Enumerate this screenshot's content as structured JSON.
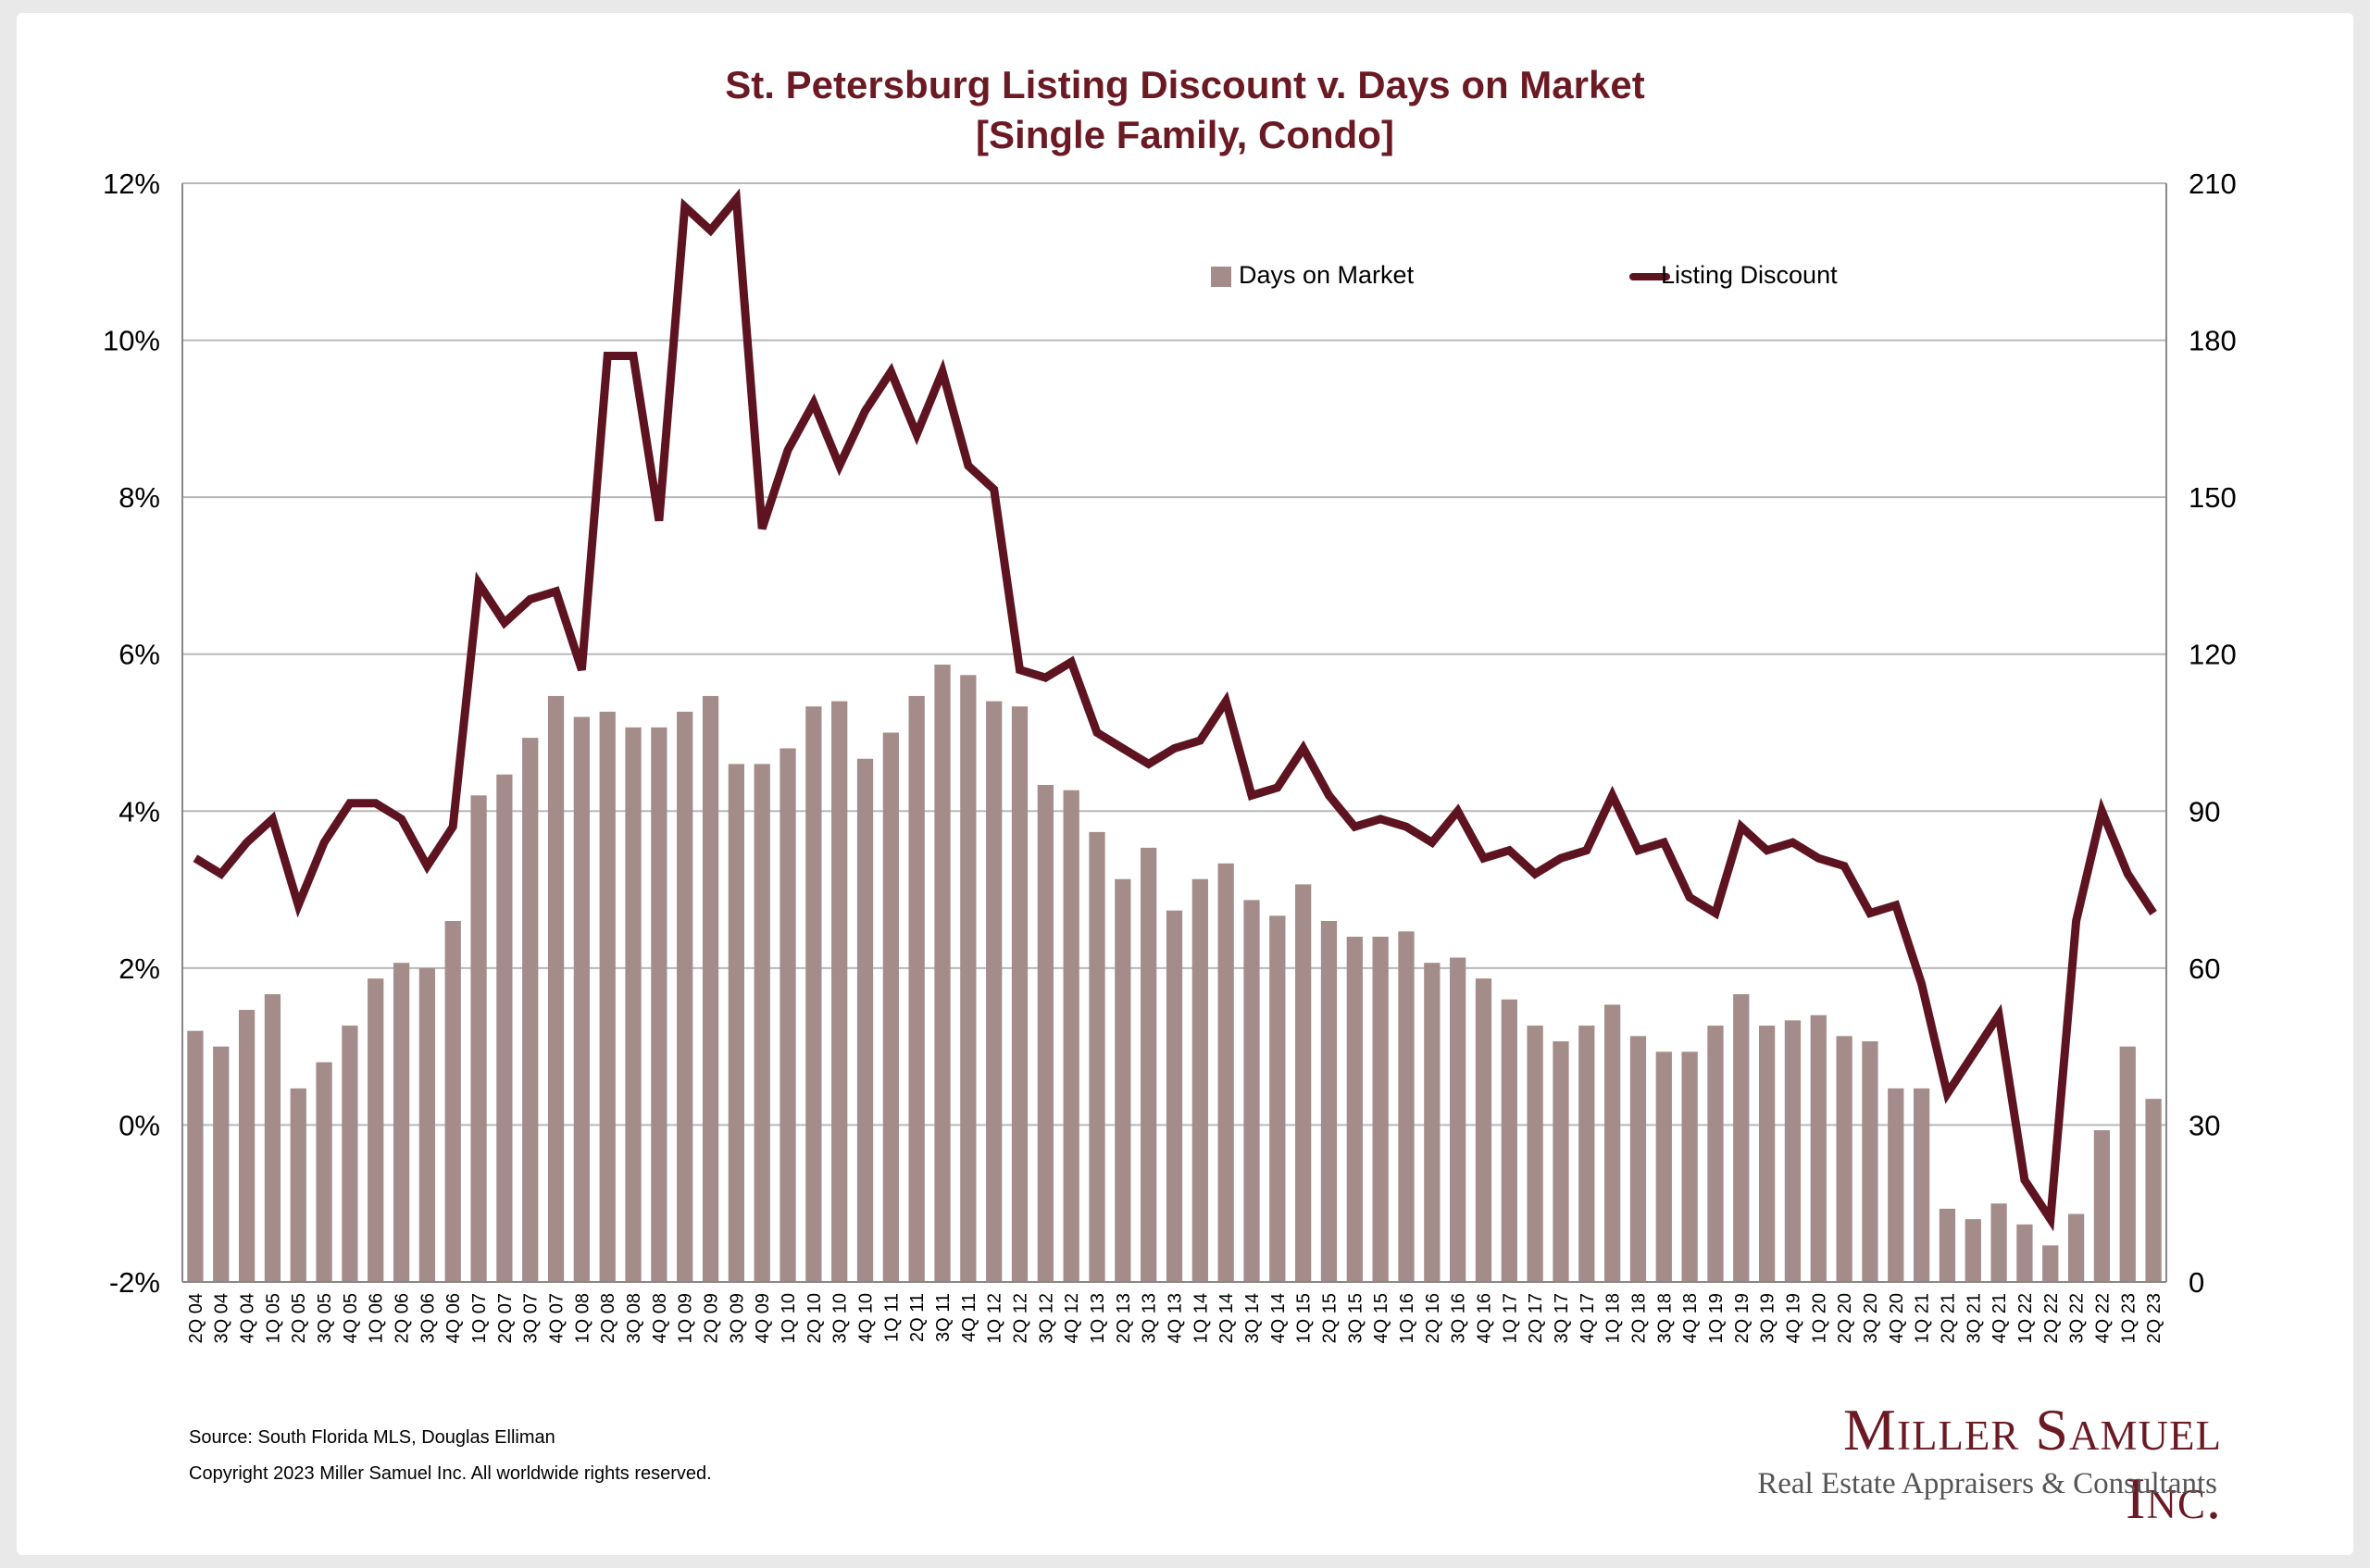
{
  "colors": {
    "bar": "#a38c89",
    "line": "#5e1420",
    "title": "#6b1a24",
    "grid": "#b8b8b8"
  },
  "chart_data": {
    "type": "bar+line",
    "title": "St. Petersburg Listing Discount v. Days on Market",
    "subtitle": "[Single Family, Condo]",
    "categories": [
      "2Q 04",
      "3Q 04",
      "4Q 04",
      "1Q 05",
      "2Q 05",
      "3Q 05",
      "4Q 05",
      "1Q 06",
      "2Q 06",
      "3Q 06",
      "4Q 06",
      "1Q 07",
      "2Q 07",
      "3Q 07",
      "4Q 07",
      "1Q 08",
      "2Q 08",
      "3Q 08",
      "4Q 08",
      "1Q 09",
      "2Q 09",
      "3Q 09",
      "4Q 09",
      "1Q 10",
      "2Q 10",
      "3Q 10",
      "4Q 10",
      "1Q 11",
      "2Q 11",
      "3Q 11",
      "4Q 11",
      "1Q 12",
      "2Q 12",
      "3Q 12",
      "4Q 12",
      "1Q 13",
      "2Q 13",
      "3Q 13",
      "4Q 13",
      "1Q 14",
      "2Q 14",
      "3Q 14",
      "4Q 14",
      "1Q 15",
      "2Q 15",
      "3Q 15",
      "4Q 15",
      "1Q 16",
      "2Q 16",
      "3Q 16",
      "4Q 16",
      "1Q 17",
      "2Q 17",
      "3Q 17",
      "4Q 17",
      "1Q 18",
      "2Q 18",
      "3Q 18",
      "4Q 18",
      "1Q 19",
      "2Q 19",
      "3Q 19",
      "4Q 19",
      "1Q 20",
      "2Q 20",
      "3Q 20",
      "4Q 20",
      "1Q 21",
      "2Q 21",
      "3Q 21",
      "4Q 21",
      "1Q 22",
      "2Q 22",
      "3Q 22",
      "4Q 22",
      "1Q 23",
      "2Q 23"
    ],
    "series": [
      {
        "name": "Days on Market",
        "type": "bar",
        "axis": "right",
        "values": [
          48,
          45,
          52,
          55,
          37,
          42,
          49,
          58,
          61,
          60,
          69,
          93,
          97,
          104,
          112,
          108,
          109,
          106,
          106,
          109,
          112,
          99,
          99,
          102,
          110,
          111,
          100,
          105,
          112,
          118,
          116,
          111,
          110,
          95,
          94,
          86,
          77,
          83,
          71,
          77,
          80,
          73,
          70,
          76,
          69,
          66,
          66,
          67,
          61,
          62,
          58,
          54,
          49,
          46,
          49,
          53,
          47,
          44,
          44,
          49,
          55,
          49,
          50,
          51,
          47,
          46,
          37,
          37,
          14,
          12,
          15,
          11,
          7,
          13,
          29,
          45,
          35
        ]
      },
      {
        "name": "Listing Discount",
        "type": "line",
        "axis": "left",
        "values": [
          3.4,
          3.2,
          3.6,
          3.9,
          2.8,
          3.6,
          4.1,
          4.1,
          3.9,
          3.3,
          3.8,
          6.9,
          6.4,
          6.7,
          6.8,
          5.8,
          9.8,
          9.8,
          7.7,
          11.7,
          11.4,
          11.8,
          7.6,
          8.6,
          9.2,
          8.4,
          9.1,
          9.6,
          8.8,
          9.6,
          8.4,
          8.1,
          5.8,
          5.7,
          5.9,
          5.0,
          4.8,
          4.6,
          4.8,
          4.9,
          5.4,
          4.2,
          4.3,
          4.8,
          4.2,
          3.8,
          3.9,
          3.8,
          3.6,
          4.0,
          3.4,
          3.5,
          3.2,
          3.4,
          3.5,
          4.2,
          3.5,
          3.6,
          2.9,
          2.7,
          3.8,
          3.5,
          3.6,
          3.4,
          3.3,
          2.7,
          2.8,
          1.8,
          0.4,
          0.9,
          1.4,
          -0.7,
          -1.2,
          2.6,
          4.0,
          3.2,
          2.7
        ]
      }
    ],
    "y_left": {
      "min": -2,
      "max": 12,
      "step": 2,
      "unit": "%"
    },
    "y_right": {
      "min": 0,
      "max": 210,
      "step": 30
    },
    "legend": {
      "placement": "top-right",
      "labels": [
        "Days on Market",
        "Listing Discount"
      ]
    },
    "grid": true
  },
  "footer": {
    "source": "Source: South Florida MLS, Douglas Elliman",
    "copyright": "Copyright 2023 Miller Samuel Inc.  All worldwide rights reserved."
  },
  "brand": {
    "name": "Miller Samuel Inc.",
    "tagline": "Real Estate Appraisers & Consultants"
  }
}
